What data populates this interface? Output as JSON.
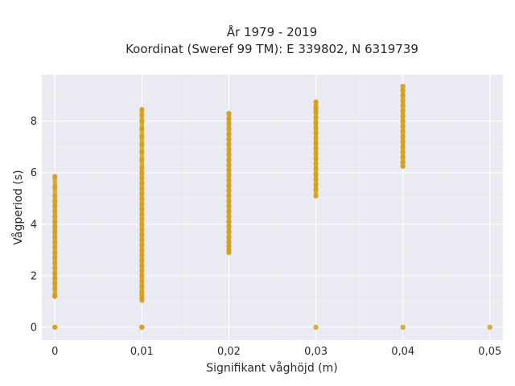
{
  "chart_data": {
    "type": "scatter",
    "title": "År 1979 - 2019",
    "subtitle": "Koordinat (Sweref 99 TM): E 339802, N 6319739",
    "xlabel": "Signifikant våghöjd (m)",
    "ylabel": "Vågperiod (s)",
    "xlim": [
      -0.0015,
      0.0515
    ],
    "ylim": [
      -0.5,
      9.8
    ],
    "x_ticks": [
      0,
      0.01,
      0.02,
      0.03,
      0.04,
      0.05
    ],
    "x_tick_labels": [
      "0",
      "0,01",
      "0,02",
      "0,03",
      "0,04",
      "0,05"
    ],
    "y_ticks": [
      0,
      2,
      4,
      6,
      8
    ],
    "y_tick_labels": [
      "0",
      "2",
      "4",
      "6",
      "8"
    ],
    "grid": true,
    "colors": {
      "point": "#d4a020",
      "background": "#eaeaf2",
      "grid": "#ffffff"
    },
    "series": [
      {
        "x": [
          0,
          0,
          0,
          0,
          0,
          0,
          0,
          0,
          0,
          0,
          0,
          0,
          0,
          0,
          0,
          0,
          0,
          0,
          0,
          0,
          0,
          0,
          0,
          0,
          0
        ],
        "y": [
          0,
          0,
          1.2,
          1.25,
          1.5,
          1.7,
          1.9,
          2.1,
          2.3,
          2.5,
          2.7,
          2.9,
          3.1,
          3.3,
          3.5,
          3.7,
          3.9,
          4.1,
          4.3,
          4.5,
          4.7,
          4.9,
          5.1,
          5.45,
          5.85
        ]
      },
      {
        "x": [
          0.01,
          0.01,
          0.01,
          0.01,
          0.01,
          0.01,
          0.01,
          0.01,
          0.01,
          0.01,
          0.01,
          0.01,
          0.01,
          0.01,
          0.01,
          0.01,
          0.01,
          0.01,
          0.01,
          0.01,
          0.01,
          0.01,
          0.01,
          0.01,
          0.01,
          0.01,
          0.01,
          0.01,
          0.01,
          0.01,
          0.01,
          0.01,
          0.01,
          0.01,
          0.01,
          0.01,
          0.01,
          0.01
        ],
        "y": [
          0,
          0,
          1.05,
          1.15,
          1.25,
          1.4,
          1.6,
          1.8,
          2.0,
          2.2,
          2.4,
          2.6,
          2.8,
          3.0,
          3.2,
          3.4,
          3.6,
          3.8,
          4.0,
          4.2,
          4.4,
          4.6,
          4.8,
          5.0,
          5.2,
          5.4,
          5.6,
          5.8,
          6.0,
          6.2,
          6.5,
          6.8,
          7.1,
          7.4,
          7.7,
          8.0,
          8.25,
          8.45
        ]
      },
      {
        "x": [
          0.02,
          0.02,
          0.02,
          0.02,
          0.02,
          0.02,
          0.02,
          0.02,
          0.02,
          0.02,
          0.02,
          0.02,
          0.02,
          0.02,
          0.02,
          0.02,
          0.02,
          0.02,
          0.02,
          0.02,
          0.02,
          0.02,
          0.02,
          0.02,
          0.02,
          0.02,
          0.02,
          0.02,
          0.02
        ],
        "y": [
          2.9,
          3.0,
          3.15,
          3.3,
          3.5,
          3.7,
          3.9,
          4.1,
          4.3,
          4.5,
          4.7,
          4.9,
          5.1,
          5.3,
          5.5,
          5.7,
          5.9,
          6.1,
          6.3,
          6.5,
          6.7,
          6.9,
          7.1,
          7.3,
          7.5,
          7.7,
          7.9,
          8.1,
          8.3
        ]
      },
      {
        "x": [
          0.03,
          0.03,
          0.03,
          0.03,
          0.03,
          0.03,
          0.03,
          0.03,
          0.03,
          0.03,
          0.03,
          0.03,
          0.03,
          0.03,
          0.03,
          0.03,
          0.03,
          0.03,
          0.03,
          0.03,
          0.03
        ],
        "y": [
          0,
          5.1,
          5.35,
          5.55,
          5.75,
          5.95,
          6.15,
          6.35,
          6.55,
          6.75,
          6.95,
          7.15,
          7.35,
          7.55,
          7.75,
          7.95,
          8.15,
          8.35,
          8.5,
          8.6,
          8.75
        ]
      },
      {
        "x": [
          0.04,
          0.04,
          0.04,
          0.04,
          0.04,
          0.04,
          0.04,
          0.04,
          0.04,
          0.04,
          0.04,
          0.04,
          0.04,
          0.04,
          0.04,
          0.04,
          0.04,
          0.04
        ],
        "y": [
          0,
          6.25,
          6.4,
          6.6,
          6.8,
          7.0,
          7.2,
          7.4,
          7.6,
          7.8,
          8.0,
          8.2,
          8.4,
          8.6,
          8.8,
          9.0,
          9.2,
          9.35
        ]
      },
      {
        "x": [
          0.05
        ],
        "y": [
          0
        ]
      }
    ]
  }
}
